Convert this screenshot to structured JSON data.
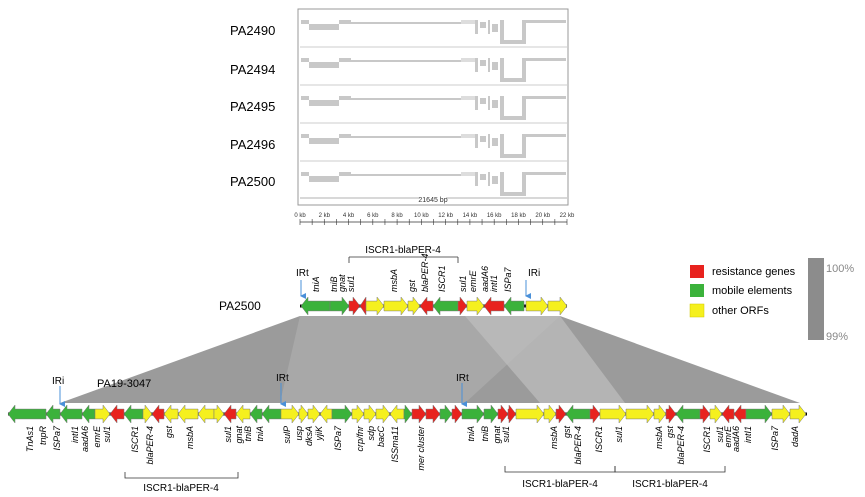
{
  "top_panel": {
    "strains": [
      "PA2490",
      "PA2494",
      "PA2495",
      "PA2496",
      "PA2500"
    ],
    "length_label": "21645 bp",
    "scale_ticks": [
      "0 kb",
      "2 kb",
      "4 kb",
      "6 kb",
      "8 kb",
      "10 kb",
      "12 kb",
      "14 kb",
      "16 kb",
      "18 kb",
      "20 kb",
      "22 kb"
    ]
  },
  "legend": {
    "items": [
      {
        "label": "resistance genes",
        "color": "#e8221e"
      },
      {
        "label": "mobile elements",
        "color": "#3bb23b"
      },
      {
        "label": "other ORFs",
        "color": "#f5f01e"
      }
    ],
    "identity_top": "100%",
    "identity_bottom": "99%"
  },
  "maps": {
    "pa2500_name": "PA2500",
    "pa19_name": "PA19-3047",
    "iscr_bracket_top": "ISCR1-blaPER-4",
    "iscr_bracket_bottom": [
      "ISCR1-blaPER-4",
      "ISCR1-blaPER-4",
      "ISCR1-blaPER-4"
    ],
    "pa2500_irt": "IRt",
    "pa2500_iri": "IRi",
    "pa19_iri": "IRi",
    "pa19_irt_1": "IRt",
    "pa19_irt_2": "IRt",
    "pa2500_genes": [
      "tniA",
      "tniB",
      "gnat",
      "sul1",
      "msbA",
      "gst",
      "blaPER-4",
      "ISCR1",
      "sul1",
      "emrE",
      "aadA6",
      "intI1",
      "ISPa7"
    ],
    "pa19_genes": [
      "TnAs1",
      "tnpR",
      "ISPa7",
      "intI1",
      "aadA6",
      "emrE",
      "sul1",
      "ISCR1",
      "blaPER-4",
      "gst",
      "msbA",
      "sul1",
      "gnat",
      "tniB",
      "tniA",
      "sulP",
      "usp",
      "dksA",
      "yjiK",
      "ISPa7",
      "crp/fnr",
      "sdp",
      "bacC",
      "ISSma11",
      "mer cluster",
      "tniA",
      "tniB",
      "gnat",
      "sul1",
      "msbA",
      "gst",
      "blaPER-4",
      "ISCR1",
      "sul1",
      "msbA",
      "gst",
      "blaPER-4",
      "ISCR1",
      "sul1",
      "emrE",
      "aadA6",
      "intI1",
      "ISPa7",
      "dadA"
    ]
  }
}
